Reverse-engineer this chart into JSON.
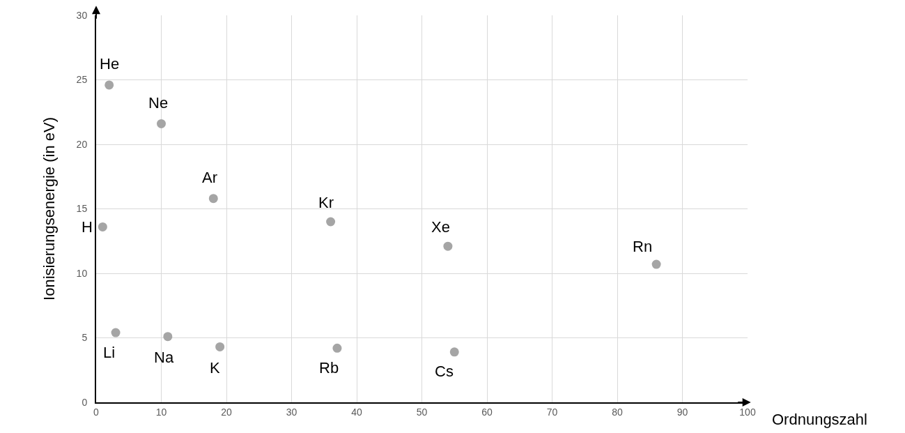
{
  "chart_data": {
    "type": "scatter",
    "xlabel": "Ordnungszahl",
    "ylabel": "Ionisierungsenergie (in eV)",
    "xlim": [
      0,
      100
    ],
    "xticks": [
      0,
      10,
      20,
      30,
      40,
      50,
      60,
      70,
      80,
      90,
      100
    ],
    "ylim": [
      0,
      30
    ],
    "yticks": [
      0,
      5,
      10,
      15,
      20,
      25,
      30
    ],
    "grid": true,
    "marker": "circle",
    "series": [
      {
        "color": "#a5a5a5",
        "x": [
          1,
          2,
          3,
          10,
          11,
          18,
          19,
          36,
          37,
          54,
          55,
          86
        ],
        "values": [
          13.6,
          24.6,
          5.4,
          21.6,
          5.1,
          15.8,
          4.3,
          14.0,
          4.2,
          12.1,
          3.9,
          10.7
        ]
      }
    ],
    "annotations": [
      {
        "text": "H",
        "x": 1,
        "y": 13.6
      },
      {
        "text": "He",
        "x": 2,
        "y": 24.6
      },
      {
        "text": "Li",
        "x": 3,
        "y": 5.4
      },
      {
        "text": "Ne",
        "x": 10,
        "y": 21.6
      },
      {
        "text": "Na",
        "x": 11,
        "y": 5.1
      },
      {
        "text": "Ar",
        "x": 18,
        "y": 15.8
      },
      {
        "text": "K",
        "x": 19,
        "y": 4.3
      },
      {
        "text": "Kr",
        "x": 36,
        "y": 14.0
      },
      {
        "text": "Rb",
        "x": 37,
        "y": 4.2
      },
      {
        "text": "Xe",
        "x": 54,
        "y": 12.1
      },
      {
        "text": "Cs",
        "x": 55,
        "y": 3.9
      },
      {
        "text": "Rn",
        "x": 86,
        "y": 10.7
      }
    ]
  }
}
